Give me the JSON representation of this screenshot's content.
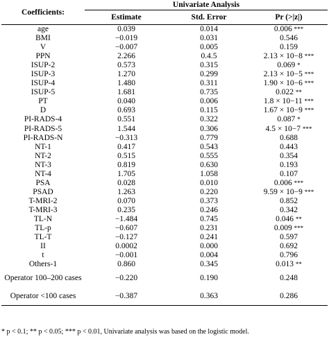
{
  "table": {
    "header": {
      "coefficients": "Coefficients:",
      "group": "Univariate Analysis",
      "estimate": "Estimate",
      "std_error": "Std. Error",
      "pr": "Pr (>|z|)"
    },
    "rows": [
      {
        "name": "age",
        "estimate": "0.039",
        "se": "0.014",
        "p": "0.006",
        "stars": "***"
      },
      {
        "name": "BMI",
        "estimate": "−0.019",
        "se": "0.031",
        "p": "0.546",
        "stars": ""
      },
      {
        "name": "V",
        "estimate": "−0.007",
        "se": "0.005",
        "p": "0.159",
        "stars": ""
      },
      {
        "name": "PPN",
        "estimate": "2.266",
        "se": "0.4.5",
        "p": "2.13 × 10−8",
        "stars": "***"
      },
      {
        "name": "ISUP-2",
        "estimate": "0.573",
        "se": "0.315",
        "p": "0.069",
        "stars": "*"
      },
      {
        "name": "ISUP-3",
        "estimate": "1.270",
        "se": "0.299",
        "p": "2.13 × 10−5",
        "stars": "***"
      },
      {
        "name": "ISUP-4",
        "estimate": "1.480",
        "se": "0.311",
        "p": "1.90 × 10−6",
        "stars": "***"
      },
      {
        "name": "ISUP-5",
        "estimate": "1.681",
        "se": "0.735",
        "p": "0.022",
        "stars": "**"
      },
      {
        "name": "PT",
        "estimate": "0.040",
        "se": "0.006",
        "p": "1.8 × 10−11",
        "stars": "***"
      },
      {
        "name": "D",
        "estimate": "0.693",
        "se": "0.115",
        "p": "1.67 × 10−9",
        "stars": "***"
      },
      {
        "name": "PI-RADS-4",
        "estimate": "0.551",
        "se": "0.322",
        "p": "0.087",
        "stars": "*"
      },
      {
        "name": "PI-RADS-5",
        "estimate": "1.544",
        "se": "0.306",
        "p": "4.5 × 10−7",
        "stars": "***"
      },
      {
        "name": "PI-RADS-N",
        "estimate": "−0.313",
        "se": "0.779",
        "p": "0.688",
        "stars": ""
      },
      {
        "name": "NT-1",
        "estimate": "0.417",
        "se": "0.543",
        "p": "0.443",
        "stars": ""
      },
      {
        "name": "NT-2",
        "estimate": "0.515",
        "se": "0.555",
        "p": "0.354",
        "stars": ""
      },
      {
        "name": "NT-3",
        "estimate": "0.819",
        "se": "0.630",
        "p": "0.193",
        "stars": ""
      },
      {
        "name": "NT-4",
        "estimate": "1.705",
        "se": "1.058",
        "p": "0.107",
        "stars": ""
      },
      {
        "name": "PSA",
        "estimate": "0.028",
        "se": "0.010",
        "p": "0.006",
        "stars": "***"
      },
      {
        "name": "PSAD",
        "estimate": "1.263",
        "se": "0.220",
        "p": "9.59 × 10−9",
        "stars": "***"
      },
      {
        "name": "T-MRI-2",
        "estimate": "0.070",
        "se": "0.373",
        "p": "0.852",
        "stars": ""
      },
      {
        "name": "T-MRI-3",
        "estimate": "0.235",
        "se": "0.246",
        "p": "0.342",
        "stars": ""
      },
      {
        "name": "TL-N",
        "estimate": "−1.484",
        "se": "0.745",
        "p": "0.046",
        "stars": "**"
      },
      {
        "name": "TL-p",
        "estimate": "−0.607",
        "se": "0.231",
        "p": "0.009",
        "stars": "***"
      },
      {
        "name": "TL-T",
        "estimate": "−0.127",
        "se": "0.241",
        "p": "0.597",
        "stars": ""
      },
      {
        "name": "II",
        "estimate": "0.0002",
        "se": "0.000",
        "p": "0.692",
        "stars": ""
      },
      {
        "name": "t",
        "estimate": "−0.001",
        "se": "0.004",
        "p": "0.796",
        "stars": ""
      },
      {
        "name": "Others-1",
        "estimate": "0.860",
        "se": "0.345",
        "p": "0.013",
        "stars": "**"
      },
      {
        "name": "Operator 100–200 cases",
        "estimate": "−0.220",
        "se": "0.190",
        "p": "0.248",
        "stars": "",
        "tall": true
      },
      {
        "name": "Operator <100 cases",
        "estimate": "−0.387",
        "se": "0.363",
        "p": "0.286",
        "stars": "",
        "tall": true
      }
    ],
    "footnote": "* p < 0.1; ** p < 0.05; *** p < 0.01, Univariate analysis was based on the logistic model."
  }
}
